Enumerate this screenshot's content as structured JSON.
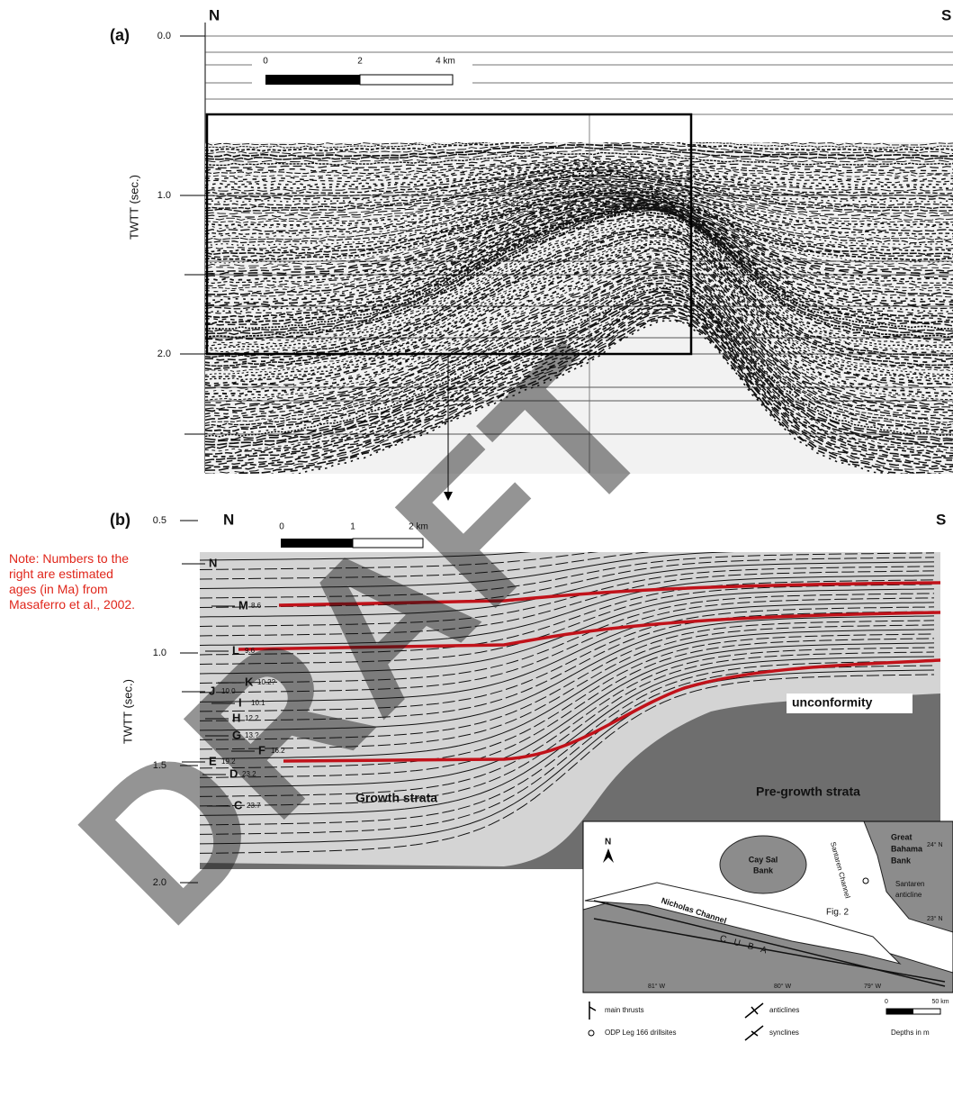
{
  "panel_a": {
    "label": "(a)",
    "north": "N",
    "south": "S",
    "yticks": [
      "0.0",
      "1.0",
      "2.0"
    ],
    "axis_label": "TWTT (sec.)",
    "scale": [
      "0",
      "2",
      "4 km"
    ]
  },
  "panel_b": {
    "label": "(b)",
    "north": "N",
    "south": "S",
    "yticks": [
      "0.5",
      "1.0",
      "1.5",
      "2.0"
    ],
    "axis_label": "TWTT (sec.)",
    "scale": [
      "0",
      "1",
      "2 km"
    ],
    "horizons": [
      {
        "letter": "N"
      },
      {
        "letter": "M",
        "age": "8.6"
      },
      {
        "letter": "L",
        "age": "9.6"
      },
      {
        "letter": "K",
        "age": "10.2?"
      },
      {
        "letter": "J",
        "age": "10.0"
      },
      {
        "letter": "I",
        "age": "10.1"
      },
      {
        "letter": "H",
        "age": "12.2"
      },
      {
        "letter": "G",
        "age": "13.?"
      },
      {
        "letter": "F",
        "age": "16.2"
      },
      {
        "letter": "E",
        "age": "19.2"
      },
      {
        "letter": "D",
        "age": "23.2"
      },
      {
        "letter": "C",
        "age": "23.7"
      }
    ],
    "unconformity": "unconformity",
    "growth": "Growth strata",
    "pregrowth": "Pre-growth strata"
  },
  "note": [
    "Note: Numbers to the",
    "right are estimated",
    "ages (in Ma) from",
    "Masaferro et al., 2002."
  ],
  "map": {
    "north": "N",
    "cay_sal": [
      "Cay Sal",
      "Bank"
    ],
    "bahama": [
      "Great",
      "Bahama",
      "Bank"
    ],
    "nicholas": "Nicholas Channel",
    "santaren_channel": "Santaren Channel",
    "anticline": [
      "Santaren",
      "anticline"
    ],
    "fig": "Fig. 2",
    "cuba": "C U B A",
    "lat": [
      "24° N",
      "23° N"
    ],
    "lon": [
      "81° W",
      "80° W",
      "79° W"
    ],
    "legend": {
      "thrusts": "main thrusts",
      "drillsites": "ODP Leg 166 drillsites",
      "anticlines": "anticlines",
      "synclines": "synclines",
      "depths": "Depths in m",
      "scale": [
        "0",
        "50 km"
      ]
    }
  },
  "watermark": "DRAFT"
}
